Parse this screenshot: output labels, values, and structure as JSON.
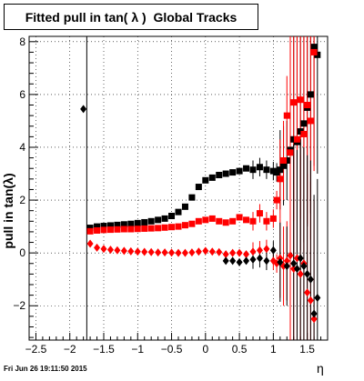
{
  "title": "Fitted pull in tan( λ )  Global Tracks",
  "footer_timestamp": "Fri Jun 26 19:11:50 2015",
  "chart_data": {
    "type": "scatter",
    "title": "Fitted pull in tan( λ )  Global Tracks",
    "xlabel": "η",
    "ylabel": "pull in tan(λ)",
    "xlim": [
      -2.6,
      1.8
    ],
    "ylim": [
      -3.3,
      8.2
    ],
    "x_ticks": [
      -2.5,
      -2,
      -1.5,
      -1,
      -0.5,
      0,
      0.5,
      1,
      1.5
    ],
    "x_tick_labels": [
      "−2.5",
      "−2",
      "−1.5",
      "−1",
      "−0.5",
      "0",
      "0.5",
      "1",
      "1.5"
    ],
    "y_ticks": [
      -2,
      0,
      2,
      4,
      6,
      8
    ],
    "y_tick_labels": [
      "−2",
      "0",
      "2",
      "4",
      "6",
      "8"
    ],
    "grid": true,
    "outlier_point": {
      "x": -1.8,
      "y": 5.45,
      "color": "#000000",
      "marker": "diamond"
    },
    "vertical_line_x": -1.75,
    "series": [
      {
        "color": "#000000",
        "marker": "square",
        "points": [
          [
            -1.7,
            0.95
          ],
          [
            -1.6,
            1.0
          ],
          [
            -1.5,
            1.02
          ],
          [
            -1.4,
            1.04
          ],
          [
            -1.3,
            1.06
          ],
          [
            -1.2,
            1.08
          ],
          [
            -1.1,
            1.1
          ],
          [
            -1.0,
            1.13
          ],
          [
            -0.9,
            1.16
          ],
          [
            -0.8,
            1.2
          ],
          [
            -0.7,
            1.25
          ],
          [
            -0.6,
            1.3
          ],
          [
            -0.5,
            1.4
          ],
          [
            -0.4,
            1.55
          ],
          [
            -0.3,
            1.75
          ],
          [
            -0.2,
            2.1
          ],
          [
            -0.1,
            2.5
          ],
          [
            0.0,
            2.75
          ],
          [
            0.1,
            2.85
          ],
          [
            0.2,
            2.95
          ],
          [
            0.3,
            3.0
          ],
          [
            0.4,
            3.05
          ],
          [
            0.5,
            3.1
          ],
          [
            0.6,
            3.2
          ],
          [
            0.7,
            3.15
          ],
          [
            0.8,
            3.25
          ],
          [
            0.9,
            3.15
          ],
          [
            1.0,
            3.1
          ],
          [
            1.05,
            3.05
          ],
          [
            1.1,
            3.15
          ],
          [
            1.15,
            3.3
          ],
          [
            1.2,
            3.5
          ],
          [
            1.25,
            3.9
          ],
          [
            1.3,
            4.3
          ],
          [
            1.35,
            4.2
          ],
          [
            1.4,
            4.6
          ],
          [
            1.45,
            4.9
          ],
          [
            1.5,
            5.5
          ],
          [
            1.55,
            6.0
          ],
          [
            1.6,
            7.8
          ],
          [
            1.65,
            7.5
          ]
        ]
      },
      {
        "color": "#ff0000",
        "marker": "square",
        "points": [
          [
            -1.7,
            0.82
          ],
          [
            -1.6,
            0.85
          ],
          [
            -1.5,
            0.87
          ],
          [
            -1.4,
            0.88
          ],
          [
            -1.3,
            0.89
          ],
          [
            -1.2,
            0.9
          ],
          [
            -1.1,
            0.9
          ],
          [
            -1.0,
            0.91
          ],
          [
            -0.9,
            0.92
          ],
          [
            -0.8,
            0.93
          ],
          [
            -0.7,
            0.94
          ],
          [
            -0.6,
            0.96
          ],
          [
            -0.5,
            0.98
          ],
          [
            -0.4,
            1.0
          ],
          [
            -0.3,
            1.05
          ],
          [
            -0.2,
            1.1
          ],
          [
            -0.1,
            1.2
          ],
          [
            0.0,
            1.25
          ],
          [
            0.1,
            1.3
          ],
          [
            0.2,
            1.2
          ],
          [
            0.3,
            1.15
          ],
          [
            0.4,
            1.2
          ],
          [
            0.5,
            1.35
          ],
          [
            0.6,
            1.25
          ],
          [
            0.7,
            1.2
          ],
          [
            0.8,
            1.5
          ],
          [
            0.9,
            1.2
          ],
          [
            1.0,
            1.3
          ],
          [
            1.05,
            2.0
          ],
          [
            1.1,
            2.8
          ],
          [
            1.15,
            3.5
          ],
          [
            1.2,
            5.2
          ],
          [
            1.25,
            3.8
          ],
          [
            1.3,
            5.7
          ],
          [
            1.35,
            4.3
          ],
          [
            1.4,
            5.8
          ],
          [
            1.45,
            4.5
          ],
          [
            1.5,
            5.6
          ],
          [
            1.55,
            5.0
          ],
          [
            1.6,
            7.6
          ]
        ]
      },
      {
        "color": "#ff0000",
        "marker": "diamond",
        "points": [
          [
            -1.7,
            0.35
          ],
          [
            -1.6,
            0.2
          ],
          [
            -1.5,
            0.15
          ],
          [
            -1.4,
            0.12
          ],
          [
            -1.3,
            0.1
          ],
          [
            -1.2,
            0.08
          ],
          [
            -1.1,
            0.06
          ],
          [
            -1.0,
            0.05
          ],
          [
            -0.9,
            0.04
          ],
          [
            -0.8,
            0.03
          ],
          [
            -0.7,
            0.02
          ],
          [
            -0.6,
            0.02
          ],
          [
            -0.5,
            0.01
          ],
          [
            -0.4,
            0.0
          ],
          [
            -0.3,
            0.0
          ],
          [
            -0.2,
            0.02
          ],
          [
            -0.1,
            0.05
          ],
          [
            0.0,
            0.08
          ],
          [
            0.1,
            0.05
          ],
          [
            0.2,
            0.03
          ],
          [
            0.3,
            -0.05
          ],
          [
            0.4,
            0.0
          ],
          [
            0.5,
            0.0
          ],
          [
            0.6,
            -0.05
          ],
          [
            0.7,
            0.05
          ],
          [
            0.8,
            0.1
          ],
          [
            0.9,
            0.15
          ],
          [
            1.0,
            -0.3
          ],
          [
            1.05,
            -0.4
          ],
          [
            1.1,
            -0.2
          ],
          [
            1.15,
            -0.5
          ],
          [
            1.2,
            -0.3
          ],
          [
            1.25,
            -0.1
          ],
          [
            1.3,
            -0.6
          ],
          [
            1.35,
            -0.2
          ],
          [
            1.4,
            -0.8
          ],
          [
            1.45,
            -0.4
          ],
          [
            1.5,
            -1.5
          ],
          [
            1.55,
            -1.8
          ],
          [
            1.6,
            -2.5
          ]
        ]
      },
      {
        "color": "#000000",
        "marker": "diamond",
        "points": [
          [
            0.3,
            -0.3
          ],
          [
            0.4,
            -0.3
          ],
          [
            0.5,
            -0.35
          ],
          [
            0.6,
            -0.3
          ],
          [
            0.7,
            -0.25
          ],
          [
            0.8,
            -0.2
          ],
          [
            0.9,
            -0.3
          ],
          [
            1.0,
            0.1
          ],
          [
            1.1,
            -0.35
          ],
          [
            1.2,
            -0.5
          ],
          [
            1.3,
            -0.4
          ],
          [
            1.35,
            -0.6
          ],
          [
            1.4,
            -0.2
          ],
          [
            1.45,
            -0.5
          ],
          [
            1.5,
            -0.8
          ],
          [
            1.55,
            -1.0
          ],
          [
            1.6,
            -2.3
          ],
          [
            1.65,
            -1.7
          ]
        ]
      }
    ]
  }
}
